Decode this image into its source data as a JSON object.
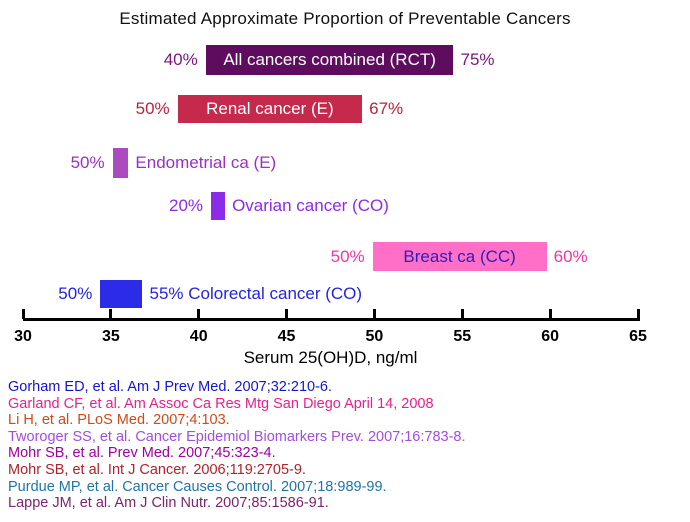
{
  "chart_data": {
    "type": "bar",
    "orientation": "horizontal-range",
    "title": "Estimated Approximate Proportion of Preventable Cancers",
    "xlabel": "Serum 25(OH)D, ng/ml",
    "xlim": [
      30,
      65
    ],
    "xticks": [
      30,
      35,
      40,
      45,
      50,
      55,
      60,
      65
    ],
    "grid": false,
    "bars": [
      {
        "name": "All cancers combined (RCT)",
        "range": [
          40.4,
          54.5
        ],
        "left_label": "40%",
        "right_label": "75%",
        "bar_color": "#5E0D5E",
        "bar_text_color": "#FFFFFF",
        "label_color": "#7E157E",
        "dotted": false,
        "name_position": "inside"
      },
      {
        "name": "Renal cancer (E)",
        "range": [
          38.8,
          49.3
        ],
        "left_label": "50%",
        "right_label": "67%",
        "bar_color": "#C5294B",
        "bar_text_color": "#FFFFFF",
        "label_color": "#C1203E",
        "dotted": true,
        "name_position": "inside"
      },
      {
        "name": "Endometrial ca (E)",
        "range": [
          35.1,
          36.0
        ],
        "left_label": "50%",
        "right_label": "",
        "side_text": "Endometrial ca (E)",
        "bar_color": "#AA4CBE",
        "bar_text_color": "#FFFFFF",
        "label_color": "#9B2FC7",
        "dotted": true,
        "name_position": "right"
      },
      {
        "name": "Ovarian cancer (CO)",
        "range": [
          40.7,
          41.5
        ],
        "left_label": "20%",
        "right_label": "",
        "side_text": "Ovarian cancer (CO)",
        "bar_color": "#8C2BE8",
        "bar_text_color": "#FFFFFF",
        "label_color": "#8C2BE8",
        "dotted": false,
        "name_position": "right"
      },
      {
        "name": "Breast ca (CC)",
        "range": [
          49.9,
          59.8
        ],
        "left_label": "50%",
        "right_label": "60%",
        "bar_color": "#FF6EC7",
        "bar_text_color": "#2A22B8",
        "label_color": "#F4359E",
        "dotted": false,
        "name_position": "inside"
      },
      {
        "name": "Colorectal cancer (CO)",
        "range": [
          34.4,
          36.8
        ],
        "left_label": "50%",
        "right_label": "",
        "side_text": "55% Colorectal cancer (CO)",
        "bar_color": "#2B2BE8",
        "bar_text_color": "#FFFFFF",
        "label_color": "#2424DE",
        "dotted": false,
        "name_position": "right"
      }
    ]
  },
  "references": [
    {
      "text": "Gorham ED, et al. Am J Prev Med. 2007;32:210-6.",
      "color": "#1515D0"
    },
    {
      "text": "Garland CF, et al. Am Assoc Ca Res Mtg San Diego April 14, 2008",
      "color": "#E6218C"
    },
    {
      "text": "Li H, et al. PLoS Med. 2007;4:103.",
      "color": "#D04A1A"
    },
    {
      "text": "Tworoger SS, et al. Cancer Epidemiol Biomarkers Prev. 2007;16:783-8.",
      "color": "#A24DE0"
    },
    {
      "text": "Mohr SB, et al. Prev Med. 2007;45:323-4.",
      "color": "#A000A0"
    },
    {
      "text": "Mohr SB, et al.  Int J Cancer. 2006;119:2705-9.",
      "color": "#B0222C"
    },
    {
      "text": "Purdue MP, et al. Cancer Causes Control. 2007;18:989-99.",
      "color": "#1E74A8"
    },
    {
      "text": "Lappe JM, et al. Am J Clin Nutr. 2007;85:1586-91.",
      "color": "#7B2470"
    }
  ]
}
